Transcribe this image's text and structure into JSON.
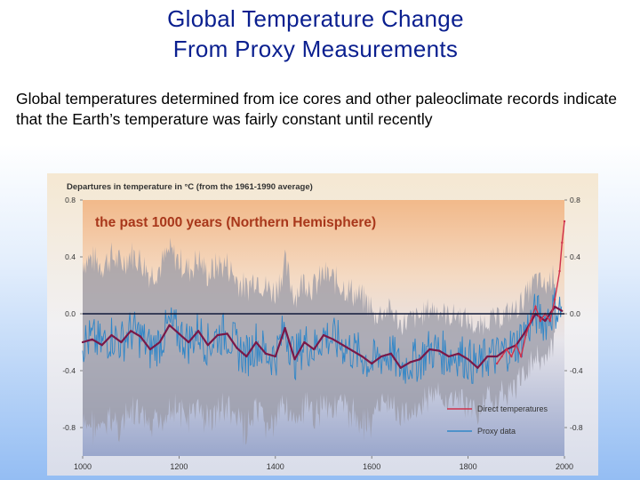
{
  "slide": {
    "title_line1": "Global Temperature Change",
    "title_line2": "From Proxy Measurements",
    "body": "Global temperatures determined from ice cores and other paleoclimate records indicate that the Earth’s temperature was fairly constant until recently"
  },
  "chart_data": {
    "type": "line",
    "title": "Departures in temperature in °C (from the 1961-1990 average)",
    "subtitle": "the past 1000 years (Northern Hemisphere)",
    "xlabel": "",
    "ylabel": "",
    "xlim": [
      1000,
      2000
    ],
    "ylim": [
      -1.0,
      0.8
    ],
    "x_ticks": [
      "1000",
      "1200",
      "1400",
      "1600",
      "1800",
      "2000"
    ],
    "y_ticks": [
      "0.8",
      "0.4",
      "0.0",
      "-0.4",
      "-0.8"
    ],
    "grid": false,
    "legend": {
      "position": "bottom-right",
      "entries": [
        "Direct temperatures",
        "Proxy data"
      ]
    },
    "colors": {
      "smoothed": "#7a1848",
      "proxy": "#2f86c8",
      "direct": "#d0304a",
      "uncertainty": "#9a9aa6",
      "zero_line": "#111a3a"
    },
    "series": [
      {
        "name": "Proxy data (smoothed)",
        "x": [
          1000,
          1020,
          1040,
          1060,
          1080,
          1100,
          1120,
          1140,
          1160,
          1180,
          1200,
          1220,
          1240,
          1260,
          1280,
          1300,
          1320,
          1340,
          1360,
          1380,
          1400,
          1420,
          1440,
          1460,
          1480,
          1500,
          1520,
          1540,
          1560,
          1580,
          1600,
          1620,
          1640,
          1660,
          1680,
          1700,
          1720,
          1740,
          1760,
          1780,
          1800,
          1820,
          1840,
          1860,
          1880,
          1900,
          1920,
          1940,
          1960,
          1980,
          1995
        ],
        "values": [
          -0.2,
          -0.18,
          -0.22,
          -0.15,
          -0.2,
          -0.12,
          -0.16,
          -0.25,
          -0.2,
          -0.08,
          -0.14,
          -0.2,
          -0.12,
          -0.22,
          -0.15,
          -0.14,
          -0.24,
          -0.3,
          -0.2,
          -0.28,
          -0.3,
          -0.1,
          -0.32,
          -0.2,
          -0.25,
          -0.15,
          -0.18,
          -0.22,
          -0.26,
          -0.3,
          -0.35,
          -0.3,
          -0.28,
          -0.38,
          -0.34,
          -0.32,
          -0.25,
          -0.26,
          -0.3,
          -0.28,
          -0.32,
          -0.38,
          -0.3,
          -0.3,
          -0.25,
          -0.22,
          -0.12,
          0.0,
          -0.05,
          0.05,
          0.02
        ]
      },
      {
        "name": "Direct temperatures",
        "x": [
          1860,
          1870,
          1880,
          1890,
          1900,
          1910,
          1920,
          1930,
          1940,
          1950,
          1960,
          1970,
          1980,
          1990,
          1995,
          2000
        ],
        "values": [
          -0.35,
          -0.3,
          -0.25,
          -0.3,
          -0.22,
          -0.3,
          -0.15,
          -0.05,
          0.05,
          -0.05,
          0.0,
          -0.05,
          0.1,
          0.3,
          0.5,
          0.65
        ]
      }
    ]
  }
}
